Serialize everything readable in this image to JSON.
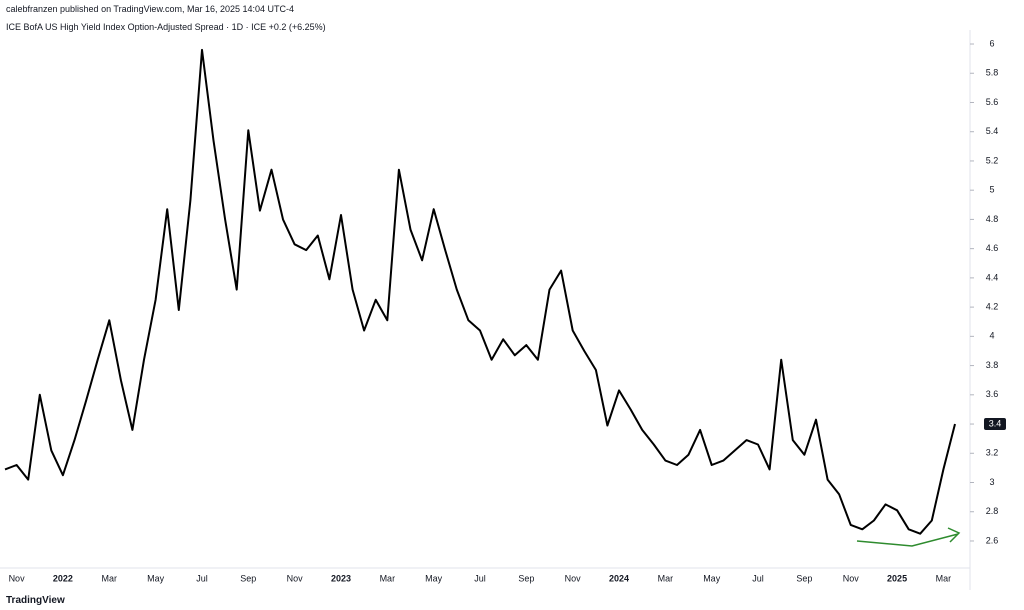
{
  "header": {
    "publisher": "calebfranzen published on TradingView.com, Mar 16, 2025 14:04 UTC-4",
    "footer": "TradingView"
  },
  "chart_data": {
    "type": "line",
    "title": "ICE BofA US High Yield Index Option-Adjusted Spread · 1D · ICE  +0.2 (+6.25%)",
    "categories": [
      null,
      "Nov",
      null,
      null,
      null,
      "2022",
      null,
      null,
      null,
      "Mar",
      null,
      null,
      null,
      "May",
      null,
      null,
      null,
      "Jul",
      null,
      null,
      null,
      "Sep",
      null,
      null,
      null,
      "Nov",
      null,
      null,
      null,
      "2023",
      null,
      null,
      null,
      "Mar",
      null,
      null,
      null,
      "May",
      null,
      null,
      null,
      "Jul",
      null,
      null,
      null,
      "Sep",
      null,
      null,
      null,
      "Nov",
      null,
      null,
      null,
      "2024",
      null,
      null,
      null,
      "Mar",
      null,
      null,
      null,
      "May",
      null,
      null,
      null,
      "Jul",
      null,
      null,
      null,
      "Sep",
      null,
      null,
      null,
      "Nov",
      null,
      null,
      null,
      "2025",
      null,
      null,
      null,
      "Mar",
      null
    ],
    "values": [
      3.09,
      3.12,
      3.02,
      3.6,
      3.22,
      3.05,
      3.29,
      3.56,
      3.84,
      4.11,
      3.7,
      3.36,
      3.84,
      4.25,
      4.87,
      4.18,
      4.93,
      5.96,
      5.34,
      4.8,
      4.32,
      5.41,
      4.86,
      5.14,
      4.8,
      4.63,
      4.59,
      4.69,
      4.39,
      4.83,
      4.32,
      4.04,
      4.25,
      4.11,
      5.14,
      4.73,
      4.52,
      4.87,
      4.59,
      4.32,
      4.11,
      4.04,
      3.84,
      3.98,
      3.87,
      3.94,
      3.84,
      4.32,
      4.45,
      4.04,
      3.9,
      3.77,
      3.39,
      3.63,
      3.5,
      3.36,
      3.26,
      3.15,
      3.12,
      3.19,
      3.36,
      3.12,
      3.15,
      3.22,
      3.29,
      3.26,
      3.09,
      3.84,
      3.29,
      3.19,
      3.43,
      3.02,
      2.92,
      2.71,
      2.68,
      2.74,
      2.85,
      2.81,
      2.68,
      2.65,
      2.74,
      3.09,
      3.4
    ],
    "color": "#000000",
    "ylim": [
      2.45,
      6.1
    ],
    "yticks": [
      2.6,
      2.8,
      3,
      3.2,
      3.4,
      3.6,
      3.8,
      4,
      4.2,
      4.4,
      4.6,
      4.8,
      5,
      5.2,
      5.4,
      5.6,
      5.8,
      6
    ],
    "grid": false
  }
}
